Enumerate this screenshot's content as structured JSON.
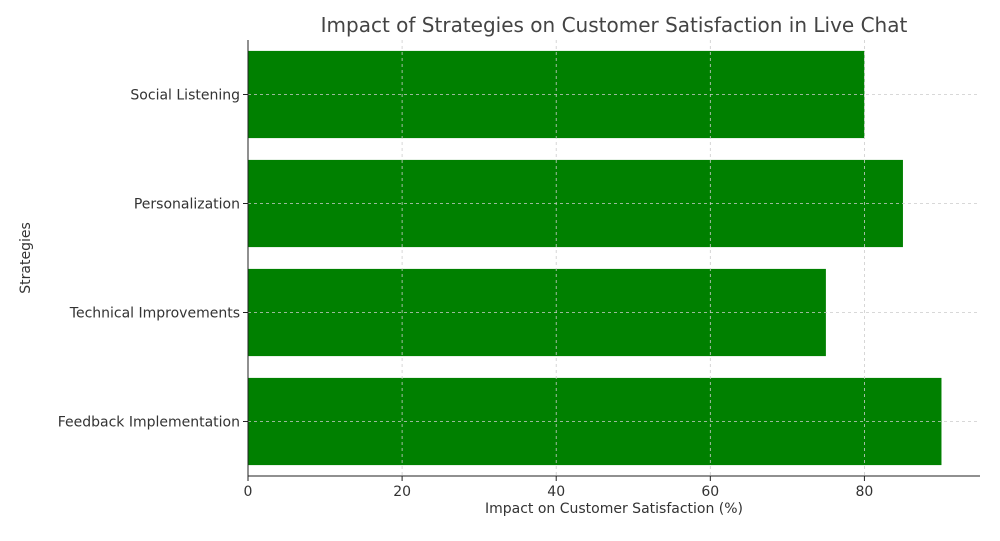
{
  "chart_data": {
    "type": "bar",
    "orientation": "horizontal",
    "title": "Impact of Strategies on Customer Satisfaction in Live Chat",
    "xlabel": "Impact on Customer Satisfaction (%)",
    "ylabel": "Strategies",
    "categories": [
      "Feedback Implementation",
      "Technical Improvements",
      "Personalization",
      "Social Listening"
    ],
    "values": [
      90,
      75,
      85,
      80
    ],
    "xlim": [
      0,
      95
    ],
    "xticks": [
      0,
      20,
      40,
      60,
      80
    ],
    "grid": true,
    "bar_color": "#008000"
  }
}
